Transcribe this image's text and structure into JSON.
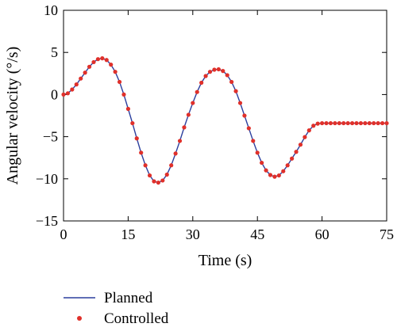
{
  "chart_data": {
    "type": "line",
    "title": "",
    "xlabel": "Time (s)",
    "ylabel": "Angular velocity (°/s)",
    "xlim": [
      0,
      75
    ],
    "ylim": [
      -15,
      10
    ],
    "x_ticks": [
      "0",
      "15",
      "30",
      "45",
      "60",
      "75"
    ],
    "y_ticks": [
      "10",
      "5",
      "0",
      "−5",
      "−10",
      "−15"
    ],
    "grid": false,
    "legend_position": "bottom-left",
    "series": [
      {
        "name": "Planned",
        "style": "line",
        "color": "#2b3f9e",
        "x": [
          0,
          1,
          2,
          3,
          4,
          5,
          6,
          7,
          8,
          9,
          10,
          11,
          12,
          13,
          14,
          15,
          16,
          17,
          18,
          19,
          20,
          21,
          22,
          23,
          24,
          25,
          26,
          27,
          28,
          29,
          30,
          31,
          32,
          33,
          34,
          35,
          36,
          37,
          38,
          39,
          40,
          41,
          42,
          43,
          44,
          45,
          46,
          47,
          48,
          49,
          50,
          51,
          52,
          53,
          54,
          55,
          56,
          57,
          58,
          59,
          60,
          61,
          62,
          63,
          64,
          65,
          66,
          67,
          68,
          69,
          70,
          71,
          72,
          73,
          74,
          75
        ],
        "y": [
          0.0,
          0.15,
          0.6,
          1.2,
          1.9,
          2.6,
          3.3,
          3.85,
          4.2,
          4.3,
          4.1,
          3.55,
          2.7,
          1.5,
          0.0,
          -1.7,
          -3.4,
          -5.2,
          -6.9,
          -8.4,
          -9.6,
          -10.3,
          -10.45,
          -10.2,
          -9.5,
          -8.4,
          -7.0,
          -5.5,
          -3.9,
          -2.4,
          -1.0,
          0.3,
          1.4,
          2.2,
          2.7,
          2.95,
          3.0,
          2.8,
          2.3,
          1.5,
          0.4,
          -1.0,
          -2.5,
          -4.0,
          -5.5,
          -6.9,
          -8.1,
          -9.0,
          -9.55,
          -9.75,
          -9.6,
          -9.1,
          -8.4,
          -7.6,
          -6.8,
          -5.95,
          -5.05,
          -4.25,
          -3.7,
          -3.45,
          -3.4,
          -3.4,
          -3.4,
          -3.4,
          -3.4,
          -3.4,
          -3.4,
          -3.4,
          -3.4,
          -3.4,
          -3.4,
          -3.4,
          -3.4,
          -3.4,
          -3.4,
          -3.4
        ]
      },
      {
        "name": "Controlled",
        "style": "markers",
        "color": "#e0302a",
        "x": [
          0,
          1,
          2,
          3,
          4,
          5,
          6,
          7,
          8,
          9,
          10,
          11,
          12,
          13,
          14,
          15,
          16,
          17,
          18,
          19,
          20,
          21,
          22,
          23,
          24,
          25,
          26,
          27,
          28,
          29,
          30,
          31,
          32,
          33,
          34,
          35,
          36,
          37,
          38,
          39,
          40,
          41,
          42,
          43,
          44,
          45,
          46,
          47,
          48,
          49,
          50,
          51,
          52,
          53,
          54,
          55,
          56,
          57,
          58,
          59,
          60,
          61,
          62,
          63,
          64,
          65,
          66,
          67,
          68,
          69,
          70,
          71,
          72,
          73,
          74,
          75
        ],
        "y": [
          0.0,
          0.15,
          0.6,
          1.2,
          1.9,
          2.6,
          3.3,
          3.85,
          4.2,
          4.3,
          4.1,
          3.55,
          2.7,
          1.5,
          0.0,
          -1.7,
          -3.4,
          -5.2,
          -6.9,
          -8.4,
          -9.6,
          -10.3,
          -10.45,
          -10.2,
          -9.5,
          -8.4,
          -7.0,
          -5.5,
          -3.9,
          -2.4,
          -1.0,
          0.3,
          1.4,
          2.2,
          2.7,
          2.95,
          3.0,
          2.8,
          2.3,
          1.5,
          0.4,
          -1.0,
          -2.5,
          -4.0,
          -5.5,
          -6.9,
          -8.1,
          -9.0,
          -9.55,
          -9.75,
          -9.6,
          -9.1,
          -8.4,
          -7.6,
          -6.8,
          -5.95,
          -5.05,
          -4.25,
          -3.7,
          -3.45,
          -3.4,
          -3.4,
          -3.4,
          -3.4,
          -3.4,
          -3.4,
          -3.4,
          -3.4,
          -3.4,
          -3.4,
          -3.4,
          -3.4,
          -3.4,
          -3.4,
          -3.4,
          -3.4
        ]
      }
    ]
  }
}
